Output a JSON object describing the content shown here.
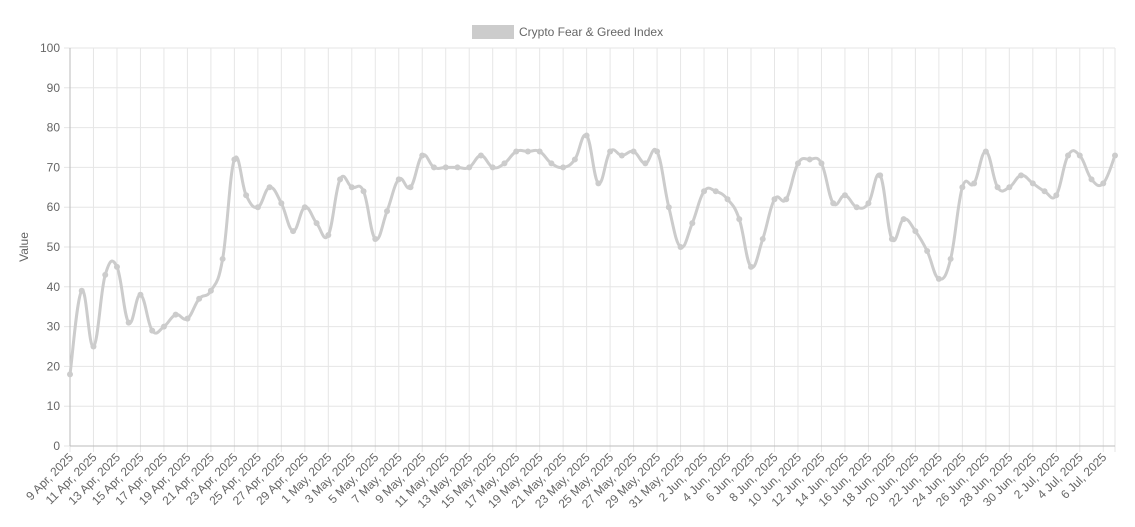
{
  "chart_data": {
    "type": "line",
    "y_label": "Value",
    "categories": [
      "9 Apr, 2025",
      null,
      "11 Apr, 2025",
      null,
      "13 Apr, 2025",
      null,
      "15 Apr, 2025",
      null,
      "17 Apr, 2025",
      null,
      "19 Apr, 2025",
      null,
      "21 Apr, 2025",
      null,
      "23 Apr, 2025",
      null,
      "25 Apr, 2025",
      null,
      "27 Apr, 2025",
      null,
      "29 Apr, 2025",
      null,
      "1 May, 2025",
      null,
      "3 May, 2025",
      null,
      "5 May, 2025",
      null,
      "7 May, 2025",
      null,
      "9 May, 2025",
      null,
      "11 May, 2025",
      null,
      "13 May, 2025",
      null,
      "15 May, 2025",
      null,
      "17 May, 2025",
      null,
      "19 May, 2025",
      null,
      "21 May, 2025",
      null,
      "23 May, 2025",
      null,
      "25 May, 2025",
      null,
      "27 May, 2025",
      null,
      "29 May, 2025",
      null,
      "31 May, 2025",
      null,
      "2 Jun, 2025",
      null,
      "4 Jun, 2025",
      null,
      "6 Jun, 2025",
      null,
      "8 Jun, 2025",
      null,
      "10 Jun, 2025",
      null,
      "12 Jun, 2025",
      null,
      "14 Jun, 2025",
      null,
      "16 Jun, 2025",
      null,
      "18 Jun, 2025",
      null,
      "20 Jun, 2025",
      null,
      "22 Jun, 2025",
      null,
      "24 Jun, 2025",
      null,
      "26 Jun, 2025",
      null,
      "28 Jun, 2025",
      null,
      "30 Jun, 2025",
      null,
      "2 Jul, 2025",
      null,
      "4 Jul, 2025",
      null,
      "6 Jul, 2025",
      null
    ],
    "series": [
      {
        "name": "Crypto Fear & Greed Index",
        "color": "#cccccc",
        "values": [
          18,
          39,
          25,
          43,
          45,
          31,
          38,
          29,
          30,
          33,
          32,
          37,
          39,
          47,
          72,
          63,
          60,
          65,
          61,
          54,
          60,
          56,
          53,
          67,
          65,
          64,
          52,
          59,
          67,
          65,
          73,
          70,
          70,
          70,
          70,
          73,
          70,
          71,
          74,
          74,
          74,
          71,
          70,
          72,
          78,
          66,
          74,
          73,
          74,
          71,
          74,
          60,
          50,
          56,
          64,
          64,
          62,
          57,
          45,
          52,
          62,
          62,
          71,
          72,
          71,
          61,
          63,
          60,
          61,
          68,
          52,
          57,
          54,
          49,
          42,
          47,
          65,
          66,
          74,
          65,
          65,
          68,
          66,
          64,
          63,
          73,
          73,
          67,
          66,
          73
        ]
      }
    ],
    "ylim": [
      0,
      100
    ],
    "yticks": [
      0,
      10,
      20,
      30,
      40,
      50,
      60,
      70,
      80,
      90,
      100
    ],
    "grid": true,
    "legend": "top"
  }
}
